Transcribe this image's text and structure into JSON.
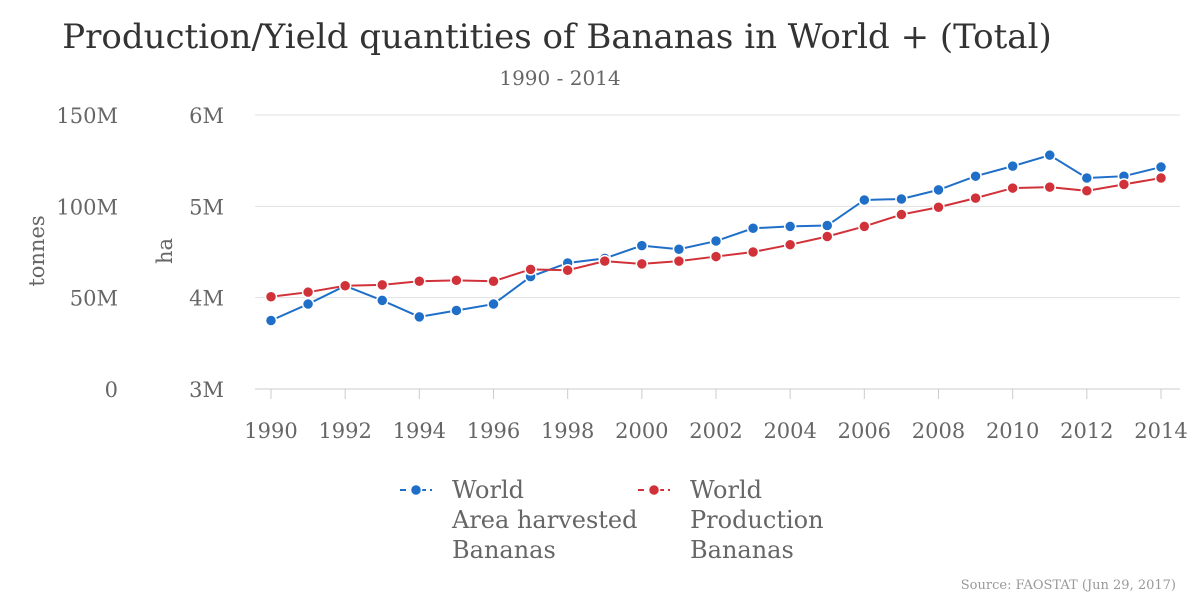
{
  "title": "Production/Yield quantities of Bananas in World + (Total)",
  "subtitle": "1990 - 2014",
  "source": "Source: FAOSTAT (Jun 29, 2017)",
  "colors": {
    "area": "#1f6fc9",
    "production": "#d1323a",
    "grid": "#e0e0e0",
    "text": "#666666"
  },
  "chart_data": {
    "type": "line",
    "x": [
      1990,
      1991,
      1992,
      1993,
      1994,
      1995,
      1996,
      1997,
      1998,
      1999,
      2000,
      2001,
      2002,
      2003,
      2004,
      2005,
      2006,
      2007,
      2008,
      2009,
      2010,
      2011,
      2012,
      2013,
      2014
    ],
    "x_ticks": [
      "1990",
      "1992",
      "1994",
      "1996",
      "1998",
      "2000",
      "2002",
      "2004",
      "2006",
      "2008",
      "2010",
      "2012",
      "2014"
    ],
    "y_left": {
      "label": "tonnes",
      "ticks": [
        "0",
        "50M",
        "100M",
        "150M"
      ],
      "range": [
        0,
        150000000
      ]
    },
    "y_right": {
      "label": "ha",
      "ticks": [
        "3M",
        "4M",
        "5M",
        "6M"
      ],
      "range": [
        3000000,
        6000000
      ]
    },
    "grid": true,
    "legend_position": "bottom",
    "series": [
      {
        "name_lines": [
          "World",
          "Area harvested",
          "Bananas"
        ],
        "axis": "ha",
        "color": "#1f6fc9",
        "values": [
          3750000,
          3930000,
          4130000,
          3970000,
          3790000,
          3860000,
          3930000,
          4230000,
          4380000,
          4430000,
          4570000,
          4530000,
          4620000,
          4760000,
          4780000,
          4790000,
          5070000,
          5080000,
          5180000,
          5330000,
          5440000,
          5560000,
          5310000,
          5330000,
          5430000
        ]
      },
      {
        "name_lines": [
          "World",
          "Production",
          "Bananas"
        ],
        "axis": "tonnes",
        "color": "#d1323a",
        "values": [
          50500000,
          53000000,
          56500000,
          57000000,
          59000000,
          59500000,
          59000000,
          65500000,
          65000000,
          70000000,
          68500000,
          70000000,
          72500000,
          75000000,
          79000000,
          83500000,
          89000000,
          95500000,
          99500000,
          104500000,
          110000000,
          110500000,
          108500000,
          112000000,
          115500000
        ]
      }
    ]
  }
}
